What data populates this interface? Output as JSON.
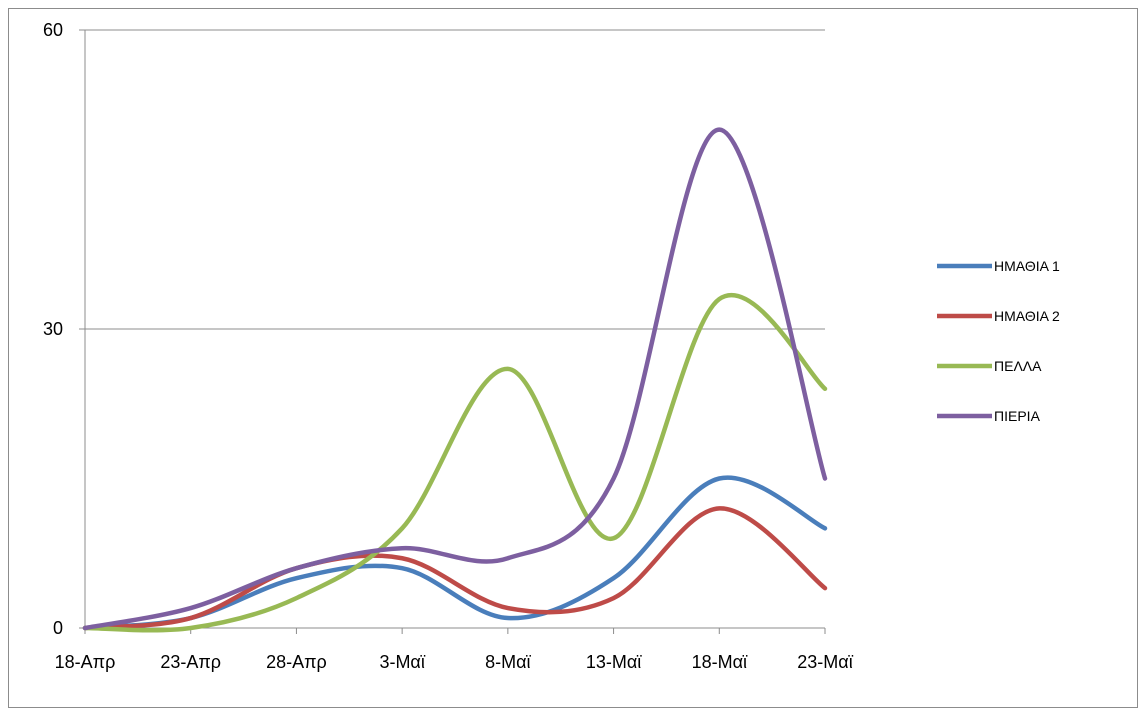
{
  "chart_data": {
    "type": "line",
    "title": "",
    "xlabel": "",
    "ylabel": "",
    "smooth": true,
    "x": [
      "18-Απρ",
      "23-Απρ",
      "28-Απρ",
      "3-Μαϊ",
      "8-Μαϊ",
      "13-Μαϊ",
      "18-Μαϊ",
      "23-Μαϊ"
    ],
    "ylim": [
      0,
      60
    ],
    "yticks": [
      0,
      30,
      60
    ],
    "grid": {
      "horizontal": true,
      "vertical": false
    },
    "legend": "right",
    "series": [
      {
        "name": "ΗΜΑΘΙΑ 1",
        "color": "#4a7ebb",
        "values": [
          0,
          1,
          5,
          6,
          1,
          5,
          15,
          10
        ]
      },
      {
        "name": "ΗΜΑΘΙΑ 2",
        "color": "#be4b48",
        "values": [
          0,
          1,
          6,
          7,
          2,
          3,
          12,
          4
        ]
      },
      {
        "name": "ΠΕΛΛΑ",
        "color": "#98b954",
        "values": [
          0,
          0,
          3,
          10,
          26,
          9,
          33,
          24
        ]
      },
      {
        "name": "ΠΙΕΡΙΑ",
        "color": "#7d5fa0",
        "values": [
          0,
          2,
          6,
          8,
          7,
          15,
          50,
          15
        ]
      }
    ]
  }
}
